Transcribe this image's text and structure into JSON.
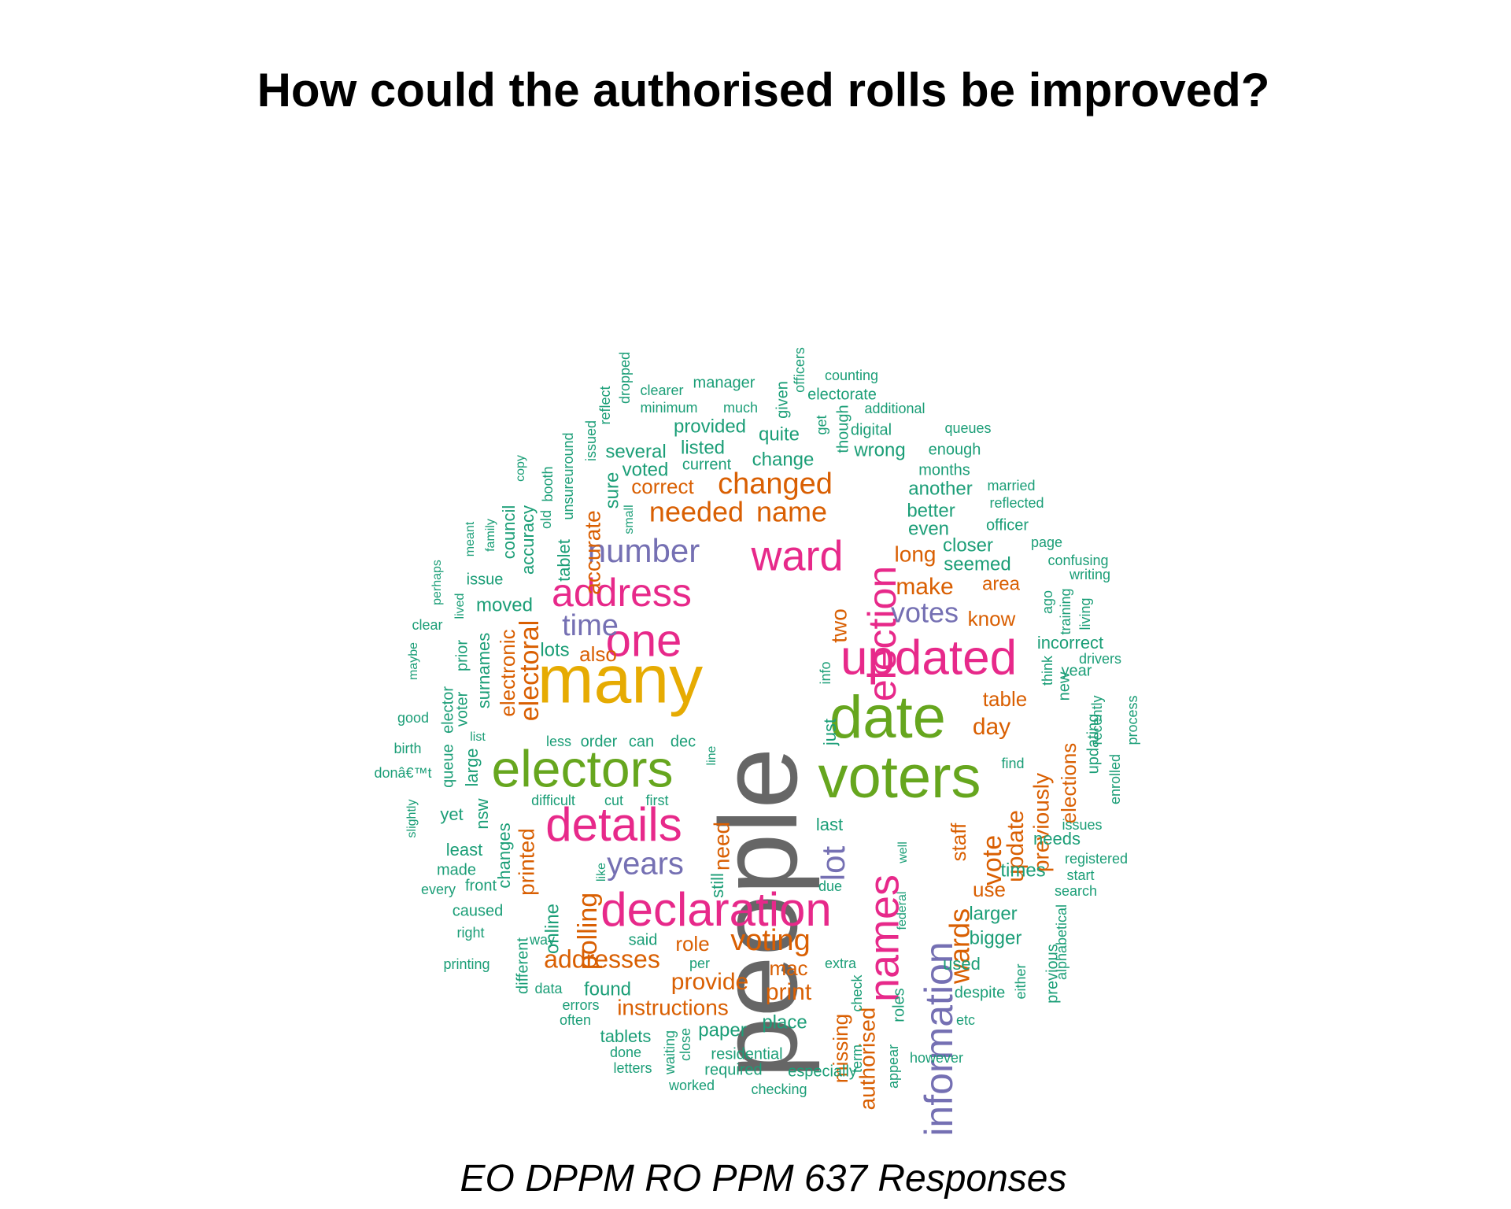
{
  "title": "How could the authorised rolls be improved?",
  "caption": "EO DPPM RO PPM 637 Responses",
  "palette": {
    "gray": "#666666",
    "gold": "#E6AB02",
    "green": "#66A61E",
    "pink": "#E7298A",
    "purple": "#7570B3",
    "orange": "#D95F02",
    "teal": "#1B9E77"
  },
  "chart_data": {
    "type": "wordcloud",
    "words": [
      {
        "text": "people",
        "weight": 100,
        "color": "gray"
      },
      {
        "text": "many",
        "weight": 62,
        "color": "gold"
      },
      {
        "text": "date",
        "weight": 55,
        "color": "green"
      },
      {
        "text": "voters",
        "weight": 55,
        "color": "green"
      },
      {
        "text": "electors",
        "weight": 50,
        "color": "green"
      },
      {
        "text": "updated",
        "weight": 47,
        "color": "pink"
      },
      {
        "text": "details",
        "weight": 45,
        "color": "pink"
      },
      {
        "text": "declaration",
        "weight": 45,
        "color": "pink"
      },
      {
        "text": "names",
        "weight": 44,
        "color": "pink"
      },
      {
        "text": "one",
        "weight": 42,
        "color": "pink"
      },
      {
        "text": "address",
        "weight": 40,
        "color": "pink"
      },
      {
        "text": "election",
        "weight": 40,
        "color": "pink"
      },
      {
        "text": "ward",
        "weight": 40,
        "color": "pink"
      },
      {
        "text": "information",
        "weight": 40,
        "color": "purple"
      },
      {
        "text": "number",
        "weight": 33,
        "color": "purple"
      },
      {
        "text": "years",
        "weight": 32,
        "color": "purple"
      },
      {
        "text": "lot",
        "weight": 32,
        "color": "purple"
      },
      {
        "text": "time",
        "weight": 32,
        "color": "purple"
      },
      {
        "text": "votes",
        "weight": 30,
        "color": "purple"
      },
      {
        "text": "voting",
        "weight": 30,
        "color": "orange"
      },
      {
        "text": "wards",
        "weight": 30,
        "color": "orange"
      },
      {
        "text": "changed",
        "weight": 30,
        "color": "orange"
      },
      {
        "text": "needed",
        "weight": 30,
        "color": "orange"
      },
      {
        "text": "name",
        "weight": 30,
        "color": "orange"
      },
      {
        "text": "polling",
        "weight": 28,
        "color": "orange"
      },
      {
        "text": "electoral",
        "weight": 28,
        "color": "orange"
      },
      {
        "text": "addresses",
        "weight": 28,
        "color": "orange"
      },
      {
        "text": "vote",
        "weight": 28,
        "color": "orange"
      },
      {
        "text": "authorised",
        "weight": 27,
        "color": "orange"
      },
      {
        "text": "make",
        "weight": 26,
        "color": "orange"
      },
      {
        "text": "day",
        "weight": 26,
        "color": "orange"
      },
      {
        "text": "update",
        "weight": 25,
        "color": "orange"
      },
      {
        "text": "provide",
        "weight": 25,
        "color": "orange"
      },
      {
        "text": "print",
        "weight": 25,
        "color": "orange"
      },
      {
        "text": "instructions",
        "weight": 24,
        "color": "orange"
      },
      {
        "text": "accurate",
        "weight": 24,
        "color": "orange"
      },
      {
        "text": "two",
        "weight": 24,
        "color": "orange"
      },
      {
        "text": "long",
        "weight": 24,
        "color": "orange"
      },
      {
        "text": "previously",
        "weight": 24,
        "color": "orange"
      },
      {
        "text": "need",
        "weight": 24,
        "color": "orange"
      },
      {
        "text": "printed",
        "weight": 24,
        "color": "orange"
      },
      {
        "text": "electronic",
        "weight": 23,
        "color": "orange"
      },
      {
        "text": "elections",
        "weight": 23,
        "color": "orange"
      },
      {
        "text": "missing",
        "weight": 23,
        "color": "orange"
      },
      {
        "text": "table",
        "weight": 23,
        "color": "orange"
      },
      {
        "text": "role",
        "weight": 22,
        "color": "orange"
      },
      {
        "text": "staff",
        "weight": 22,
        "color": "orange"
      },
      {
        "text": "use",
        "weight": 22,
        "color": "orange"
      },
      {
        "text": "mac",
        "weight": 22,
        "color": "orange"
      },
      {
        "text": "know",
        "weight": 22,
        "color": "orange"
      },
      {
        "text": "also",
        "weight": 22,
        "color": "orange"
      },
      {
        "text": "correct",
        "weight": 22,
        "color": "orange"
      },
      {
        "text": "area",
        "weight": 20,
        "color": "orange"
      },
      {
        "text": "lots",
        "weight": 21,
        "color": "teal"
      },
      {
        "text": "larger",
        "weight": 21,
        "color": "teal"
      },
      {
        "text": "bigger",
        "weight": 21,
        "color": "teal"
      },
      {
        "text": "place",
        "weight": 21,
        "color": "teal"
      },
      {
        "text": "paper",
        "weight": 21,
        "color": "teal"
      },
      {
        "text": "found",
        "weight": 21,
        "color": "teal"
      },
      {
        "text": "times",
        "weight": 21,
        "color": "teal"
      },
      {
        "text": "online",
        "weight": 21,
        "color": "teal"
      },
      {
        "text": "change",
        "weight": 21,
        "color": "teal"
      },
      {
        "text": "quite",
        "weight": 21,
        "color": "teal"
      },
      {
        "text": "listed",
        "weight": 20,
        "color": "teal"
      },
      {
        "text": "provided",
        "weight": 20,
        "color": "teal"
      },
      {
        "text": "another",
        "weight": 20,
        "color": "teal"
      },
      {
        "text": "better",
        "weight": 20,
        "color": "teal"
      },
      {
        "text": "even",
        "weight": 20,
        "color": "teal"
      },
      {
        "text": "closer",
        "weight": 20,
        "color": "teal"
      },
      {
        "text": "seemed",
        "weight": 20,
        "color": "teal"
      },
      {
        "text": "wrong",
        "weight": 20,
        "color": "teal"
      },
      {
        "text": "several",
        "weight": 20,
        "color": "teal"
      },
      {
        "text": "sure",
        "weight": 20,
        "color": "teal"
      },
      {
        "text": "voted",
        "weight": 20,
        "color": "teal"
      },
      {
        "text": "moved",
        "weight": 20,
        "color": "teal"
      },
      {
        "text": "surnames",
        "weight": 20,
        "color": "teal"
      },
      {
        "text": "incorrect",
        "weight": 20,
        "color": "teal"
      },
      {
        "text": "needs",
        "weight": 20,
        "color": "teal"
      },
      {
        "text": "used",
        "weight": 20,
        "color": "teal"
      },
      {
        "text": "last",
        "weight": 20,
        "color": "teal"
      },
      {
        "text": "changes",
        "weight": 20,
        "color": "teal"
      },
      {
        "text": "accuracy",
        "weight": 19,
        "color": "teal"
      },
      {
        "text": "tablet",
        "weight": 19,
        "color": "teal"
      },
      {
        "text": "least",
        "weight": 19,
        "color": "teal"
      },
      {
        "text": "yet",
        "weight": 19,
        "color": "teal"
      },
      {
        "text": "large",
        "weight": 19,
        "color": "teal"
      },
      {
        "text": "nsw",
        "weight": 19,
        "color": "teal"
      },
      {
        "text": "council",
        "weight": 19,
        "color": "teal"
      },
      {
        "text": "just",
        "weight": 19,
        "color": "teal"
      },
      {
        "text": "still",
        "weight": 19,
        "color": "teal"
      },
      {
        "text": "different",
        "weight": 18,
        "color": "teal"
      },
      {
        "text": "tablets",
        "weight": 18,
        "color": "teal"
      },
      {
        "text": "said",
        "weight": 18,
        "color": "teal"
      },
      {
        "text": "despite",
        "weight": 18,
        "color": "teal"
      },
      {
        "text": "previous",
        "weight": 18,
        "color": "teal"
      },
      {
        "text": "required",
        "weight": 18,
        "color": "teal"
      },
      {
        "text": "especially",
        "weight": 18,
        "color": "teal"
      },
      {
        "text": "residential",
        "weight": 18,
        "color": "teal"
      },
      {
        "text": "roles",
        "weight": 18,
        "color": "teal"
      },
      {
        "text": "made",
        "weight": 18,
        "color": "teal"
      },
      {
        "text": "caused",
        "weight": 18,
        "color": "teal"
      },
      {
        "text": "front",
        "weight": 18,
        "color": "teal"
      },
      {
        "text": "voter",
        "weight": 18,
        "color": "teal"
      },
      {
        "text": "prior",
        "weight": 18,
        "color": "teal"
      },
      {
        "text": "issue",
        "weight": 18,
        "color": "teal"
      },
      {
        "text": "officer",
        "weight": 18,
        "color": "teal"
      },
      {
        "text": "enough",
        "weight": 18,
        "color": "teal"
      },
      {
        "text": "months",
        "weight": 18,
        "color": "teal"
      },
      {
        "text": "current",
        "weight": 18,
        "color": "teal"
      },
      {
        "text": "manager",
        "weight": 18,
        "color": "teal"
      },
      {
        "text": "electorate",
        "weight": 18,
        "color": "teal"
      },
      {
        "text": "digital",
        "weight": 18,
        "color": "teal"
      },
      {
        "text": "given",
        "weight": 18,
        "color": "teal"
      },
      {
        "text": "though",
        "weight": 18,
        "color": "teal"
      },
      {
        "text": "new",
        "weight": 18,
        "color": "teal"
      },
      {
        "text": "year",
        "weight": 18,
        "color": "teal"
      },
      {
        "text": "updating",
        "weight": 18,
        "color": "teal"
      },
      {
        "text": "order",
        "weight": 18,
        "color": "teal"
      },
      {
        "text": "can",
        "weight": 18,
        "color": "teal"
      },
      {
        "text": "dec",
        "weight": 18,
        "color": "teal"
      },
      {
        "text": "info",
        "weight": 18,
        "color": "teal"
      },
      {
        "text": "queue",
        "weight": 18,
        "color": "teal"
      },
      {
        "text": "elector",
        "weight": 18,
        "color": "teal"
      },
      {
        "text": "old",
        "weight": 18,
        "color": "teal"
      },
      {
        "text": "booth",
        "weight": 18,
        "color": "teal"
      },
      {
        "text": "unsureuround",
        "weight": 17,
        "color": "teal"
      },
      {
        "text": "issued",
        "weight": 17,
        "color": "teal"
      },
      {
        "text": "data",
        "weight": 17,
        "color": "teal"
      },
      {
        "text": "less",
        "weight": 17,
        "color": "teal"
      },
      {
        "text": "first",
        "weight": 17,
        "color": "teal"
      },
      {
        "text": "cut",
        "weight": 17,
        "color": "teal"
      },
      {
        "text": "difficult",
        "weight": 17,
        "color": "teal"
      },
      {
        "text": "errors",
        "weight": 17,
        "color": "teal"
      },
      {
        "text": "often",
        "weight": 17,
        "color": "teal"
      },
      {
        "text": "done",
        "weight": 17,
        "color": "teal"
      },
      {
        "text": "letters",
        "weight": 17,
        "color": "teal"
      },
      {
        "text": "waiting",
        "weight": 17,
        "color": "teal"
      },
      {
        "text": "close",
        "weight": 17,
        "color": "teal"
      },
      {
        "text": "worked",
        "weight": 17,
        "color": "teal"
      },
      {
        "text": "checking",
        "weight": 17,
        "color": "teal"
      },
      {
        "text": "however",
        "weight": 17,
        "color": "teal"
      },
      {
        "text": "etc",
        "weight": 17,
        "color": "teal"
      },
      {
        "text": "either",
        "weight": 17,
        "color": "teal"
      },
      {
        "text": "alphabetical",
        "weight": 17,
        "color": "teal"
      },
      {
        "text": "search",
        "weight": 17,
        "color": "teal"
      },
      {
        "text": "start",
        "weight": 17,
        "color": "teal"
      },
      {
        "text": "registered",
        "weight": 17,
        "color": "teal"
      },
      {
        "text": "issues",
        "weight": 17,
        "color": "teal"
      },
      {
        "text": "find",
        "weight": 17,
        "color": "teal"
      },
      {
        "text": "enrolled",
        "weight": 17,
        "color": "teal"
      },
      {
        "text": "recently",
        "weight": 17,
        "color": "teal"
      },
      {
        "text": "process",
        "weight": 17,
        "color": "teal"
      },
      {
        "text": "drivers",
        "weight": 17,
        "color": "teal"
      },
      {
        "text": "think",
        "weight": 17,
        "color": "teal"
      },
      {
        "text": "living",
        "weight": 17,
        "color": "teal"
      },
      {
        "text": "training",
        "weight": 17,
        "color": "teal"
      },
      {
        "text": "ago",
        "weight": 17,
        "color": "teal"
      },
      {
        "text": "writing",
        "weight": 17,
        "color": "teal"
      },
      {
        "text": "confusing",
        "weight": 17,
        "color": "teal"
      },
      {
        "text": "page",
        "weight": 17,
        "color": "teal"
      },
      {
        "text": "reflected",
        "weight": 17,
        "color": "teal"
      },
      {
        "text": "married",
        "weight": 17,
        "color": "teal"
      },
      {
        "text": "queues",
        "weight": 17,
        "color": "teal"
      },
      {
        "text": "additional",
        "weight": 17,
        "color": "teal"
      },
      {
        "text": "counting",
        "weight": 17,
        "color": "teal"
      },
      {
        "text": "officers",
        "weight": 17,
        "color": "teal"
      },
      {
        "text": "much",
        "weight": 17,
        "color": "teal"
      },
      {
        "text": "get",
        "weight": 17,
        "color": "teal"
      },
      {
        "text": "clearer",
        "weight": 17,
        "color": "teal"
      },
      {
        "text": "minimum",
        "weight": 17,
        "color": "teal"
      },
      {
        "text": "dropped",
        "weight": 17,
        "color": "teal"
      },
      {
        "text": "reflect",
        "weight": 17,
        "color": "teal"
      },
      {
        "text": "small",
        "weight": 17,
        "color": "teal"
      },
      {
        "text": "copy",
        "weight": 17,
        "color": "teal"
      },
      {
        "text": "family",
        "weight": 17,
        "color": "teal"
      },
      {
        "text": "meant",
        "weight": 17,
        "color": "teal"
      },
      {
        "text": "perhaps",
        "weight": 17,
        "color": "teal"
      },
      {
        "text": "lived",
        "weight": 17,
        "color": "teal"
      },
      {
        "text": "clear",
        "weight": 17,
        "color": "teal"
      },
      {
        "text": "maybe",
        "weight": 17,
        "color": "teal"
      },
      {
        "text": "good",
        "weight": 17,
        "color": "teal"
      },
      {
        "text": "birth",
        "weight": 17,
        "color": "teal"
      },
      {
        "text": "donâ€™t",
        "weight": 17,
        "color": "teal"
      },
      {
        "text": "slightly",
        "weight": 17,
        "color": "teal"
      },
      {
        "text": "list",
        "weight": 17,
        "color": "teal"
      },
      {
        "text": "every",
        "weight": 17,
        "color": "teal"
      },
      {
        "text": "right",
        "weight": 17,
        "color": "teal"
      },
      {
        "text": "printing",
        "weight": 17,
        "color": "teal"
      },
      {
        "text": "way",
        "weight": 17,
        "color": "teal"
      },
      {
        "text": "like",
        "weight": 17,
        "color": "teal"
      },
      {
        "text": "line",
        "weight": 17,
        "color": "teal"
      },
      {
        "text": "per",
        "weight": 17,
        "color": "teal"
      },
      {
        "text": "extra",
        "weight": 17,
        "color": "teal"
      },
      {
        "text": "due",
        "weight": 17,
        "color": "teal"
      },
      {
        "text": "check",
        "weight": 17,
        "color": "teal"
      },
      {
        "text": "term",
        "weight": 17,
        "color": "teal"
      },
      {
        "text": "appear",
        "weight": 17,
        "color": "teal"
      },
      {
        "text": "federal",
        "weight": 17,
        "color": "teal"
      },
      {
        "text": "well",
        "weight": 17,
        "color": "teal"
      }
    ]
  }
}
